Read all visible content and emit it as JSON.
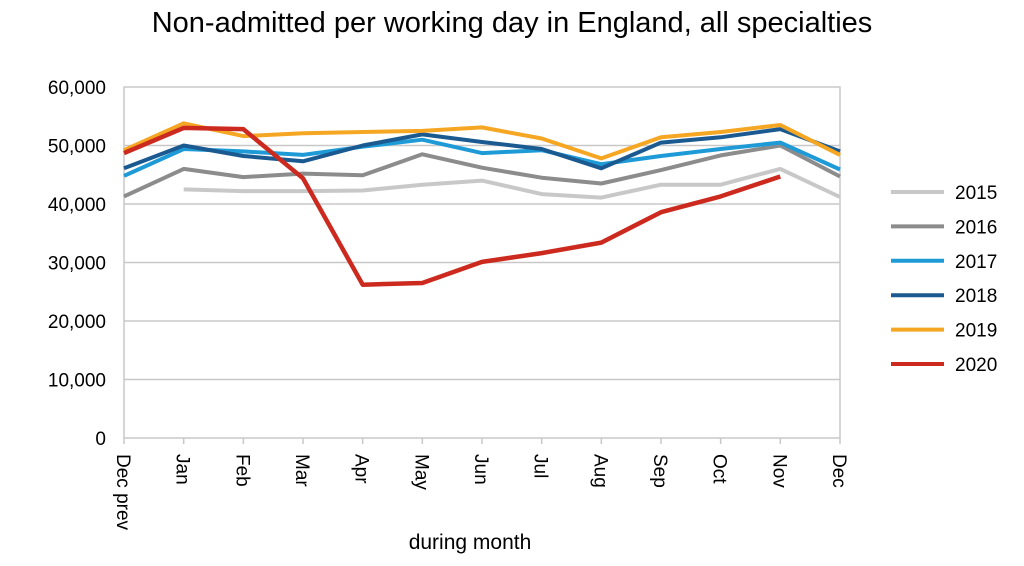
{
  "chart_data": {
    "type": "line",
    "title": "Non-admitted per working day in England, all specialties",
    "subtitle": "",
    "xlabel": "during month",
    "ylabel": "",
    "categories": [
      "Dec prev",
      "Jan",
      "Feb",
      "Mar",
      "Apr",
      "May",
      "Jun",
      "Jul",
      "Aug",
      "Sep",
      "Oct",
      "Nov",
      "Dec"
    ],
    "ylim": [
      0,
      60000
    ],
    "yticks": [
      "0",
      "10,000",
      "20,000",
      "30,000",
      "40,000",
      "50,000",
      "60,000"
    ],
    "grid": true,
    "legend_position": "right",
    "series": [
      {
        "name": "2015",
        "color": "#c8c8c8",
        "values": [
          null,
          42500,
          42200,
          42200,
          42300,
          43300,
          44000,
          41700,
          41100,
          43300,
          43300,
          46000,
          41200
        ]
      },
      {
        "name": "2016",
        "color": "#8c8c8c",
        "values": [
          41300,
          46000,
          44600,
          45200,
          44900,
          48500,
          46200,
          44500,
          43500,
          45800,
          48300,
          50000,
          44700
        ]
      },
      {
        "name": "2017",
        "color": "#1e9bd7",
        "values": [
          44800,
          49400,
          49000,
          48400,
          49800,
          51000,
          48700,
          49200,
          46800,
          48200,
          49400,
          50500,
          45900
        ]
      },
      {
        "name": "2018",
        "color": "#1a5a90",
        "values": [
          46100,
          50000,
          48200,
          47300,
          50000,
          51900,
          50600,
          49400,
          46100,
          50500,
          51400,
          52800,
          49000
        ]
      },
      {
        "name": "2019",
        "color": "#f5a623",
        "values": [
          49200,
          53800,
          51600,
          52100,
          52300,
          52500,
          53100,
          51200,
          47800,
          51400,
          52300,
          53500,
          48400
        ]
      },
      {
        "name": "2020",
        "color": "#cc2a1e",
        "values": [
          48700,
          53000,
          52800,
          44400,
          26200,
          26500,
          30100,
          31600,
          33400,
          38600,
          41300,
          44700,
          null
        ]
      }
    ]
  }
}
